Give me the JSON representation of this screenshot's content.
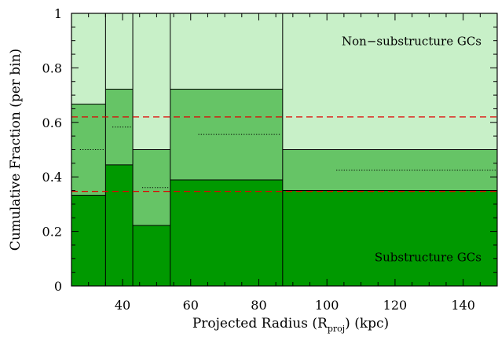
{
  "chart_data": {
    "type": "bar",
    "title": "",
    "xlabel_prefix": "Projected Radius (R",
    "xlabel_sub": "proj",
    "xlabel_suffix": ") (kpc)",
    "ylabel": "Cumulative Fraction (per bin)",
    "xlim": [
      25,
      150
    ],
    "ylim": [
      0,
      1
    ],
    "xticks": [
      40,
      60,
      80,
      100,
      120,
      140
    ],
    "yticks": [
      0,
      0.2,
      0.4,
      0.6,
      0.8,
      1
    ],
    "ytick_labels": [
      "0",
      "0.2",
      "0.4",
      "0.6",
      "0.8",
      "1"
    ],
    "bins": [
      {
        "x0": 25,
        "x1": 35,
        "sub": 0.333,
        "mid": 0.5,
        "top": 0.667
      },
      {
        "x0": 35,
        "x1": 43,
        "sub": 0.444,
        "mid": 0.583,
        "top": 0.722
      },
      {
        "x0": 43,
        "x1": 54,
        "sub": 0.222,
        "mid": 0.361,
        "top": 0.5
      },
      {
        "x0": 54,
        "x1": 87,
        "sub": 0.389,
        "mid": 0.556,
        "top": 0.722
      },
      {
        "x0": 87,
        "x1": 150,
        "sub": 0.35,
        "mid": 0.425,
        "top": 0.5
      }
    ],
    "reference_lines": [
      0.62,
      0.347
    ],
    "annotations": {
      "upper": "Non−substructure GCs",
      "lower": "Substructure GCs"
    },
    "colors": {
      "dark": "#009900",
      "mid": "#66c466",
      "light": "#c8f0c8",
      "ref_line": "#e00000"
    }
  }
}
